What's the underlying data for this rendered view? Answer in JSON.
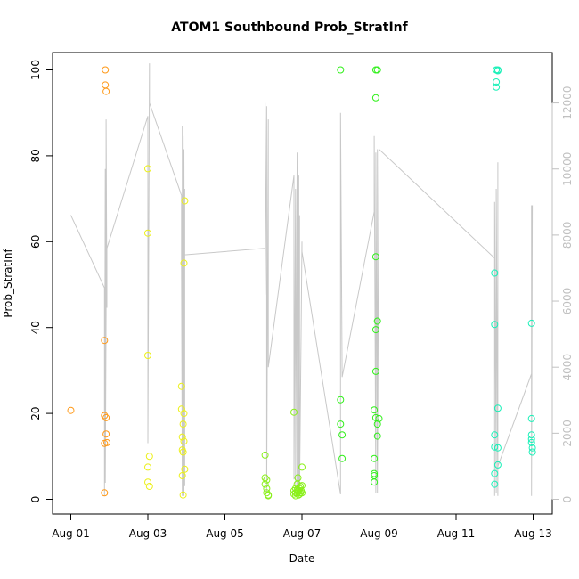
{
  "chart_data": {
    "type": "scatter",
    "title": "ATOM1 Southbound Prob_StratInf",
    "xlabel": "Date",
    "ylabel": "Prob_StratInf",
    "x_ticks": [
      "Aug 01",
      "Aug 03",
      "Aug 05",
      "Aug 07",
      "Aug 09",
      "Aug 11",
      "Aug 13"
    ],
    "y_ticks": [
      0,
      20,
      40,
      60,
      80,
      100
    ],
    "y2_ticks": [
      0,
      2000,
      4000,
      6000,
      8000,
      10000,
      12000
    ],
    "xlim": [
      "2021-08-01",
      "2021-08-13"
    ],
    "ylim": [
      0,
      100
    ],
    "y2lim": [
      0,
      12000
    ],
    "grid": false,
    "colors": {
      "axis": "#000000",
      "secondary_axis": "#c0c0c0",
      "line": "#c8c8c8"
    },
    "series": [
      {
        "color": "#ff9a1a",
        "points": [
          [
            "2021-08-01 00:00",
            20.7
          ],
          [
            "2021-08-01 21:00",
            37.0
          ],
          [
            "2021-08-01 21:00",
            19.5
          ],
          [
            "2021-08-01 21:00",
            13.0
          ],
          [
            "2021-08-01 21:00",
            1.5
          ],
          [
            "2021-08-01 21:30",
            100.0
          ],
          [
            "2021-08-01 21:30",
            96.5
          ],
          [
            "2021-08-01 22:00",
            95.0
          ],
          [
            "2021-08-01 22:00",
            19.0
          ],
          [
            "2021-08-01 22:00",
            15.2
          ],
          [
            "2021-08-01 22:30",
            13.2
          ]
        ]
      },
      {
        "color": "#ecf01a",
        "points": [
          [
            "2021-08-03 00:00",
            77.0
          ],
          [
            "2021-08-03 00:00",
            62.0
          ],
          [
            "2021-08-03 00:00",
            33.5
          ],
          [
            "2021-08-03 00:00",
            7.5
          ],
          [
            "2021-08-03 00:00",
            4.0
          ],
          [
            "2021-08-03 01:00",
            10.0
          ],
          [
            "2021-08-03 01:00",
            3.0
          ],
          [
            "2021-08-03 21:00",
            26.3
          ],
          [
            "2021-08-03 21:00",
            21.0
          ],
          [
            "2021-08-03 21:30",
            14.5
          ],
          [
            "2021-08-03 21:30",
            11.5
          ],
          [
            "2021-08-03 21:30",
            5.5
          ],
          [
            "2021-08-03 22:00",
            17.5
          ],
          [
            "2021-08-03 22:00",
            11.0
          ],
          [
            "2021-08-03 22:00",
            1.0
          ],
          [
            "2021-08-03 22:30",
            55.0
          ],
          [
            "2021-08-03 22:30",
            20.0
          ],
          [
            "2021-08-03 22:30",
            13.5
          ],
          [
            "2021-08-03 23:00",
            69.5
          ],
          [
            "2021-08-03 23:00",
            7.0
          ]
        ]
      },
      {
        "color": "#8af01a",
        "points": [
          [
            "2021-08-06 01:00",
            10.3
          ],
          [
            "2021-08-06 01:00",
            5.0
          ],
          [
            "2021-08-06 01:00",
            3.5
          ],
          [
            "2021-08-06 02:00",
            4.5
          ],
          [
            "2021-08-06 02:00",
            2.5
          ],
          [
            "2021-08-06 02:00",
            1.5
          ],
          [
            "2021-08-06 03:00",
            1.0
          ],
          [
            "2021-08-06 03:00",
            0.8
          ],
          [
            "2021-08-06 19:00",
            20.3
          ],
          [
            "2021-08-06 19:00",
            2.0
          ],
          [
            "2021-08-06 19:00",
            1.2
          ],
          [
            "2021-08-06 20:00",
            2.5
          ],
          [
            "2021-08-06 20:00",
            1.5
          ],
          [
            "2021-08-06 20:00",
            0.8
          ],
          [
            "2021-08-06 21:00",
            3.5
          ],
          [
            "2021-08-06 21:00",
            2.2
          ],
          [
            "2021-08-06 21:00",
            1.4
          ],
          [
            "2021-08-06 21:30",
            5.0
          ],
          [
            "2021-08-06 21:30",
            2.0
          ],
          [
            "2021-08-06 22:00",
            1.8
          ],
          [
            "2021-08-06 22:00",
            1.0
          ],
          [
            "2021-08-06 22:30",
            2.5
          ],
          [
            "2021-08-06 22:30",
            1.2
          ],
          [
            "2021-08-06 23:00",
            3.0
          ],
          [
            "2021-08-06 23:00",
            1.5
          ],
          [
            "2021-08-06 23:30",
            2.0
          ],
          [
            "2021-08-07 00:00",
            7.5
          ],
          [
            "2021-08-07 00:00",
            3.2
          ],
          [
            "2021-08-07 00:00",
            1.5
          ]
        ]
      },
      {
        "color": "#30f01a",
        "points": [
          [
            "2021-08-08 00:00",
            100.0
          ],
          [
            "2021-08-08 00:00",
            23.2
          ],
          [
            "2021-08-08 00:00",
            17.5
          ],
          [
            "2021-08-08 01:00",
            15.0
          ],
          [
            "2021-08-08 01:00",
            9.5
          ],
          [
            "2021-08-08 21:00",
            9.5
          ],
          [
            "2021-08-08 21:00",
            20.8
          ],
          [
            "2021-08-08 21:00",
            6.0
          ],
          [
            "2021-08-08 21:00",
            5.5
          ],
          [
            "2021-08-08 21:00",
            4.0
          ],
          [
            "2021-08-08 22:00",
            100.0
          ],
          [
            "2021-08-08 22:00",
            93.5
          ],
          [
            "2021-08-08 22:00",
            56.5
          ],
          [
            "2021-08-08 22:00",
            39.5
          ],
          [
            "2021-08-08 22:00",
            29.8
          ],
          [
            "2021-08-08 22:00",
            19.0
          ],
          [
            "2021-08-08 23:00",
            100.0
          ],
          [
            "2021-08-08 23:00",
            41.5
          ],
          [
            "2021-08-08 23:00",
            17.5
          ],
          [
            "2021-08-08 23:00",
            14.7
          ],
          [
            "2021-08-09 00:00",
            18.8
          ]
        ]
      },
      {
        "color": "#1af0b8",
        "points": [
          [
            "2021-08-12 00:00",
            52.7
          ],
          [
            "2021-08-12 00:00",
            40.7
          ],
          [
            "2021-08-12 00:00",
            15.0
          ],
          [
            "2021-08-12 00:00",
            12.2
          ],
          [
            "2021-08-12 00:00",
            6.0
          ],
          [
            "2021-08-12 00:00",
            3.5
          ],
          [
            "2021-08-12 01:00",
            100.0
          ],
          [
            "2021-08-12 01:00",
            97.2
          ],
          [
            "2021-08-12 01:00",
            96.0
          ],
          [
            "2021-08-12 02:00",
            100.0
          ],
          [
            "2021-08-12 02:00",
            99.8
          ],
          [
            "2021-08-12 02:00",
            21.2
          ],
          [
            "2021-08-12 02:00",
            12.0
          ],
          [
            "2021-08-12 02:00",
            8.0
          ],
          [
            "2021-08-12 23:00",
            41.0
          ],
          [
            "2021-08-12 23:00",
            18.8
          ],
          [
            "2021-08-12 23:00",
            15.0
          ],
          [
            "2021-08-12 23:00",
            14.0
          ],
          [
            "2021-08-12 23:00",
            13.2
          ],
          [
            "2021-08-12 23:30",
            12.0
          ],
          [
            "2021-08-12 23:30",
            11.0
          ]
        ]
      }
    ],
    "secondary_line": {
      "color": "#c8c8c8",
      "points": [
        [
          "2021-08-01 00:00",
          8600
        ],
        [
          "2021-08-01 21:00",
          6400
        ],
        [
          "2021-08-01 21:00",
          100
        ],
        [
          "2021-08-01 21:30",
          10000
        ],
        [
          "2021-08-01 21:30",
          500
        ],
        [
          "2021-08-01 22:00",
          5600
        ],
        [
          "2021-08-01 22:00",
          11500
        ],
        [
          "2021-08-01 22:30",
          5800
        ],
        [
          "2021-08-01 22:30",
          7600
        ],
        [
          "2021-08-03 00:00",
          11600
        ],
        [
          "2021-08-03 00:00",
          1700
        ],
        [
          "2021-08-03 01:00",
          13200
        ],
        [
          "2021-08-03 01:00",
          12000
        ],
        [
          "2021-08-03 21:00",
          9200
        ],
        [
          "2021-08-03 21:00",
          7000
        ],
        [
          "2021-08-03 21:30",
          100
        ],
        [
          "2021-08-03 21:30",
          11300
        ],
        [
          "2021-08-03 22:00",
          300
        ],
        [
          "2021-08-03 22:00",
          11000
        ],
        [
          "2021-08-03 22:30",
          100
        ],
        [
          "2021-08-03 22:30",
          10600
        ],
        [
          "2021-08-03 23:00",
          400
        ],
        [
          "2021-08-03 23:00",
          9400
        ],
        [
          "2021-08-03 23:00",
          7400
        ],
        [
          "2021-08-06 01:00",
          7600
        ],
        [
          "2021-08-06 01:00",
          12000
        ],
        [
          "2021-08-06 01:00",
          6200
        ],
        [
          "2021-08-06 02:00",
          11900
        ],
        [
          "2021-08-06 02:00",
          200
        ],
        [
          "2021-08-06 03:00",
          11500
        ],
        [
          "2021-08-06 03:00",
          4000
        ],
        [
          "2021-08-06 19:00",
          9800
        ],
        [
          "2021-08-06 19:00",
          600
        ],
        [
          "2021-08-06 20:00",
          9400
        ],
        [
          "2021-08-06 20:00",
          200
        ],
        [
          "2021-08-06 21:00",
          10500
        ],
        [
          "2021-08-06 21:00",
          300
        ],
        [
          "2021-08-06 21:30",
          10400
        ],
        [
          "2021-08-06 21:30",
          100
        ],
        [
          "2021-08-06 22:00",
          9800
        ],
        [
          "2021-08-06 22:00",
          200
        ],
        [
          "2021-08-06 22:30",
          8600
        ],
        [
          "2021-08-06 22:30",
          200
        ],
        [
          "2021-08-07 00:00",
          7800
        ],
        [
          "2021-08-07 00:00",
          7500
        ],
        [
          "2021-08-08 00:00",
          150
        ],
        [
          "2021-08-08 00:00",
          11700
        ],
        [
          "2021-08-08 01:00",
          3700
        ],
        [
          "2021-08-08 21:00",
          8700
        ],
        [
          "2021-08-08 21:00",
          11000
        ],
        [
          "2021-08-08 22:00",
          200
        ],
        [
          "2021-08-08 22:00",
          10500
        ],
        [
          "2021-08-08 23:00",
          200
        ],
        [
          "2021-08-08 23:00",
          10600
        ],
        [
          "2021-08-09 00:00",
          300
        ],
        [
          "2021-08-09 00:00",
          10600
        ],
        [
          "2021-08-12 00:00",
          7300
        ],
        [
          "2021-08-12 00:00",
          100
        ],
        [
          "2021-08-12 00:00",
          9000
        ],
        [
          "2021-08-12 01:00",
          200
        ],
        [
          "2021-08-12 01:00",
          9400
        ],
        [
          "2021-08-12 02:00",
          100
        ],
        [
          "2021-08-12 02:00",
          10200
        ],
        [
          "2021-08-12 02:00",
          1000
        ],
        [
          "2021-08-12 23:00",
          3800
        ],
        [
          "2021-08-12 23:00",
          8900
        ],
        [
          "2021-08-12 23:00",
          100
        ],
        [
          "2021-08-12 23:30",
          8900
        ]
      ]
    }
  }
}
